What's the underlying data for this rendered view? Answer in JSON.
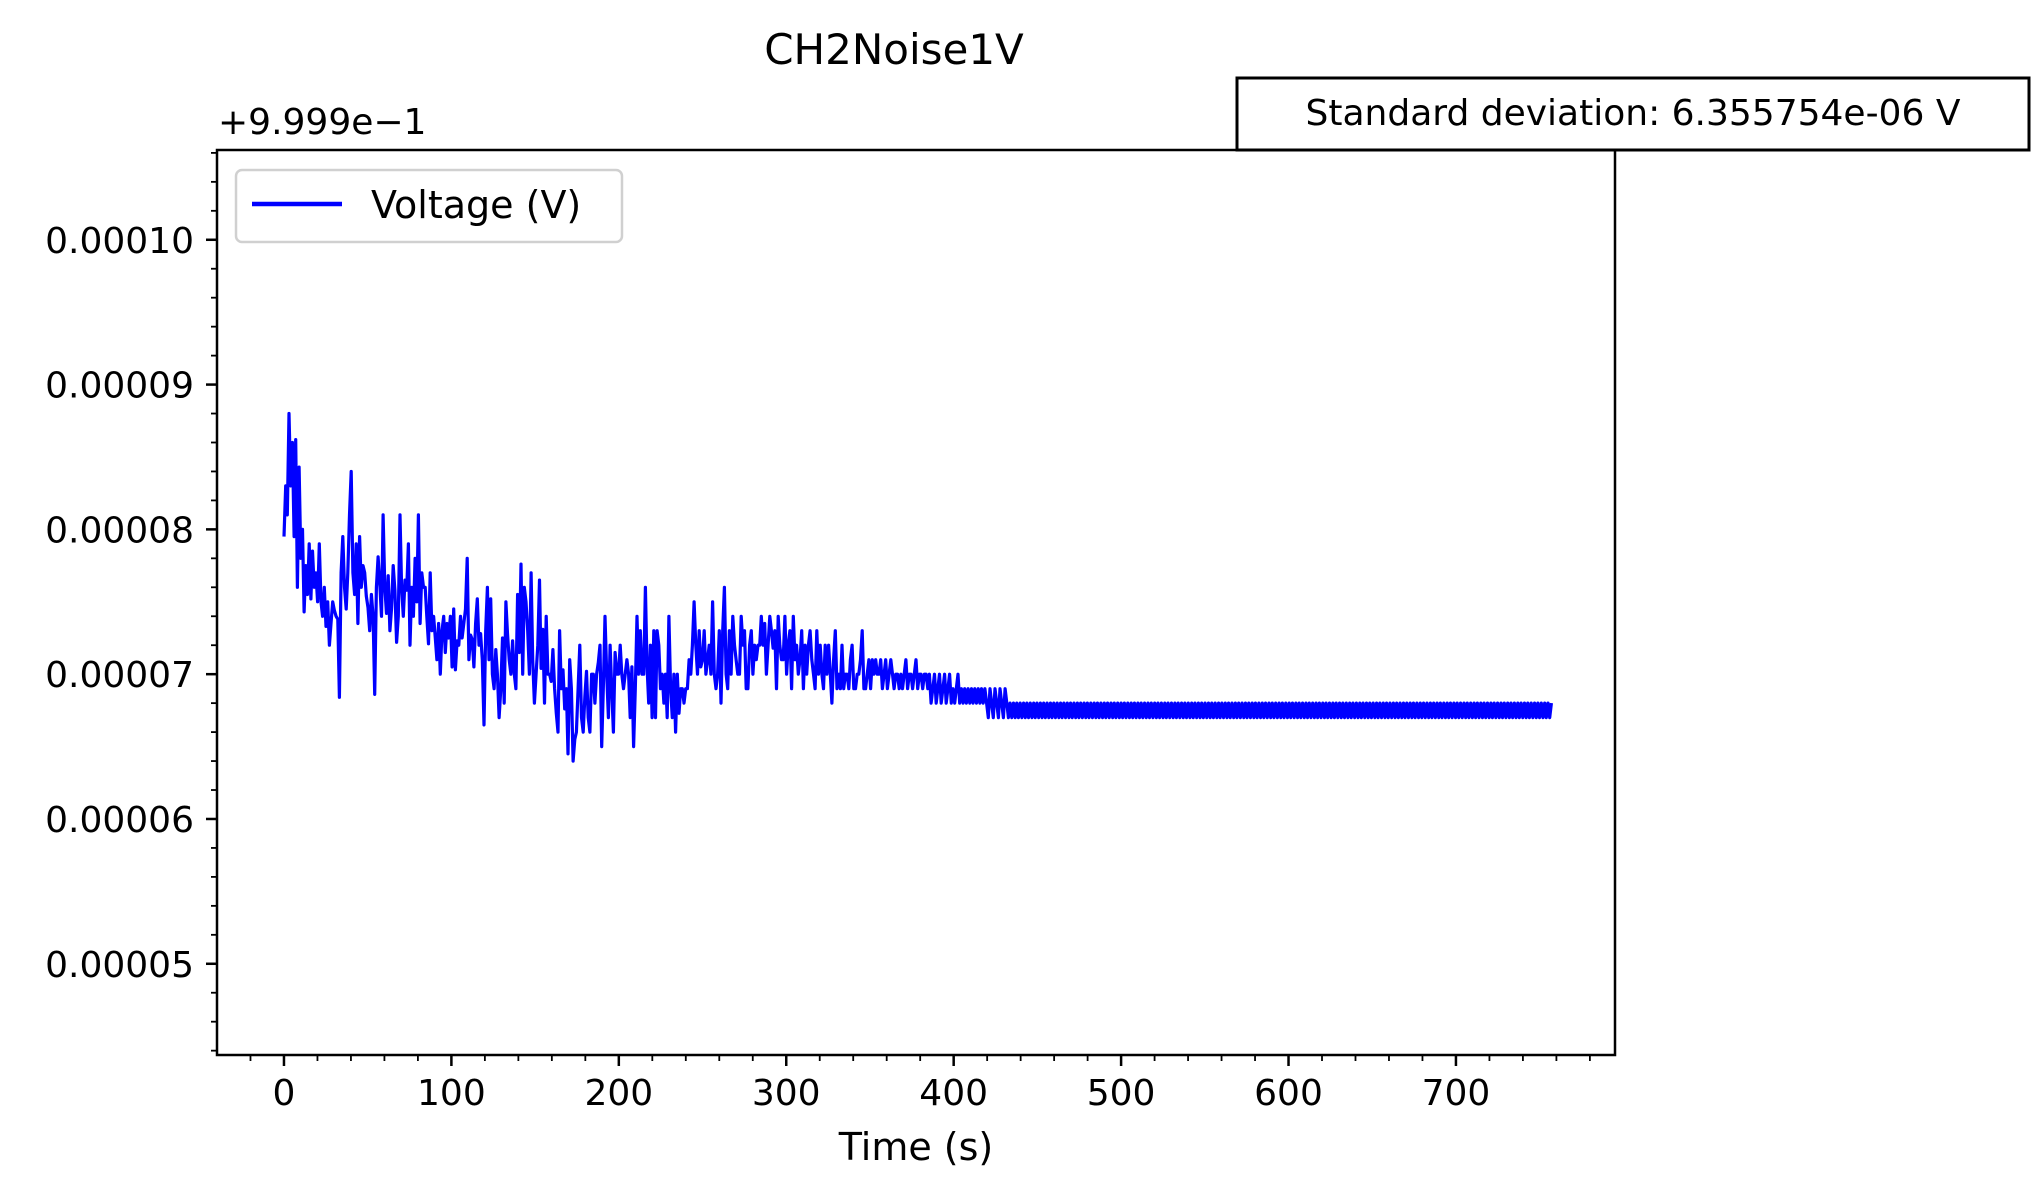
{
  "chart_data": {
    "type": "line",
    "title": "CH2Noise1V",
    "xlabel": "Time (s)",
    "ylabel": "",
    "y_offset_text": "+9.999e−1",
    "y_offset": 0.9999,
    "annotation": "Standard deviation: 6.355754e-06 V",
    "xlim": [
      -40,
      795
    ],
    "ylim": [
      4.37e-05,
      0.0001062
    ],
    "x_ticks": [
      0,
      100,
      200,
      300,
      400,
      500,
      600,
      700
    ],
    "x_tick_labels": [
      "0",
      "100",
      "200",
      "300",
      "400",
      "500",
      "600",
      "700"
    ],
    "y_ticks": [
      5e-05,
      6e-05,
      7e-05,
      8e-05,
      9e-05,
      0.0001
    ],
    "y_tick_labels": [
      "0.00005",
      "0.00006",
      "0.00007",
      "0.00008",
      "0.00009",
      "0.00010"
    ],
    "legend_position": "top-left",
    "grid": false,
    "series": [
      {
        "name": "Voltage (V)",
        "color": "#0000ff",
        "x_start": 0,
        "x_step": 1,
        "values": [
          7.95e-05,
          8.3e-05,
          8.1e-05,
          8.8e-05,
          8.3e-05,
          8.6e-05,
          7.95e-05,
          8.62e-05,
          7.6e-05,
          8.43e-05,
          7.8e-05,
          8e-05,
          7.43e-05,
          7.75e-05,
          7.55e-05,
          7.9e-05,
          7.52e-05,
          7.85e-05,
          7.6e-05,
          7.7e-05,
          7.5e-05,
          7.9e-05,
          7.5e-05,
          7.4e-05,
          7.6e-05,
          7.33e-05,
          7.5e-05,
          7.2e-05,
          7.35e-05,
          7.5e-05,
          7.44e-05,
          7.4e-05,
          7.38e-05,
          6.84e-05,
          7.7e-05,
          7.95e-05,
          7.6e-05,
          7.45e-05,
          7.7e-05,
          8.1e-05,
          8.4e-05,
          7.7e-05,
          7.55e-05,
          7.9e-05,
          7.35e-05,
          7.95e-05,
          7.6e-05,
          7.75e-05,
          7.7e-05,
          7.54e-05,
          7.46e-05,
          7.3e-05,
          7.55e-05,
          7.4e-05,
          6.86e-05,
          7.6e-05,
          7.81e-05,
          7.62e-05,
          7.4e-05,
          8.1e-05,
          7.6e-05,
          7.42e-05,
          7.68e-05,
          7.3e-05,
          7.45e-05,
          7.75e-05,
          7.58e-05,
          7.22e-05,
          7.4e-05,
          8.1e-05,
          7.6e-05,
          7.4e-05,
          7.65e-05,
          7.58e-05,
          7.9e-05,
          7.2e-05,
          7.6e-05,
          7.4e-05,
          7.8e-05,
          7.5e-05,
          8.1e-05,
          7.35e-05,
          7.7e-05,
          7.6e-05,
          7.6e-05,
          7.4e-05,
          7.21e-05,
          7.7e-05,
          7.3e-05,
          7.4e-05,
          7.25e-05,
          7.1e-05,
          7.35e-05,
          7e-05,
          7.3e-05,
          7.4e-05,
          7.15e-05,
          7.35e-05,
          7.25e-05,
          7.4e-05,
          7.05e-05,
          7.45e-05,
          7.03e-05,
          7.23e-05,
          7.2e-05,
          7.4e-05,
          7.25e-05,
          7.35e-05,
          7.45e-05,
          7.8e-05,
          7.1e-05,
          7.27e-05,
          7.24e-05,
          7.05e-05,
          7.35e-05,
          7.52e-05,
          7.2e-05,
          7.28e-05,
          7.1e-05,
          6.65e-05,
          7.3e-05,
          7.6e-05,
          7.1e-05,
          7.52e-05,
          7e-05,
          6.9e-05,
          7.17e-05,
          7e-05,
          6.7e-05,
          6.9e-05,
          7.25e-05,
          6.8e-05,
          7.5e-05,
          7.28e-05,
          7.1e-05,
          7e-05,
          7.23e-05,
          7e-05,
          6.9e-05,
          7.55e-05,
          7.15e-05,
          7.76e-05,
          7e-05,
          7.6e-05,
          7.5e-05,
          7.3e-05,
          7e-05,
          7.7e-05,
          7.1e-05,
          6.8e-05,
          7e-05,
          7.2e-05,
          7.65e-05,
          7.04e-05,
          7.31e-05,
          6.8e-05,
          7.4e-05,
          7e-05,
          7e-05,
          6.95e-05,
          7.17e-05,
          6.9e-05,
          6.73e-05,
          6.6e-05,
          7.3e-05,
          6.9e-05,
          7.03e-05,
          6.76e-05,
          6.9e-05,
          6.45e-05,
          7.1e-05,
          6.9e-05,
          6.4e-05,
          6.55e-05,
          6.6e-05,
          6.9e-05,
          7.2e-05,
          6.7e-05,
          6.6e-05,
          6.85e-05,
          7.02e-05,
          6.7e-05,
          6.6e-05,
          7e-05,
          7e-05,
          6.8e-05,
          7e-05,
          7.08e-05,
          7.2e-05,
          6.5e-05,
          6.9e-05,
          7.4e-05,
          7e-05,
          6.7e-05,
          7.2e-05,
          6.9e-05,
          6.6e-05,
          7.15e-05,
          7e-05,
          7e-05,
          7.2e-05,
          7e-05,
          6.9e-05,
          7e-05,
          7.1e-05,
          7e-05,
          6.7e-05,
          7.05e-05,
          6.5e-05,
          6.9e-05,
          7.4e-05,
          7e-05,
          7.3e-05,
          7e-05,
          7e-05,
          7.6e-05,
          7.06e-05,
          6.8e-05,
          7.2e-05,
          6.7e-05,
          7.3e-05,
          6.7e-05,
          7.3e-05,
          7.2e-05,
          6.9e-05,
          7e-05,
          6.8e-05,
          7e-05,
          6.7e-05,
          7.4e-05,
          6.9e-05,
          6.7e-05,
          7e-05,
          6.6e-05,
          7e-05,
          6.73e-05,
          6.9e-05,
          6.9e-05,
          6.8e-05,
          6.9e-05,
          6.9e-05,
          7.1e-05,
          7e-05,
          7.2e-05,
          7.5e-05,
          7.2e-05,
          7e-05,
          7.3e-05,
          7.05e-05,
          7.1e-05,
          7.3e-05,
          7e-05,
          7.1e-05,
          7.2e-05,
          7e-05,
          7.5e-05,
          7e-05,
          6.9e-05,
          7e-05,
          7.3e-05,
          6.8e-05,
          7.3e-05,
          7.6e-05,
          7e-05,
          6.9e-05,
          7.3e-05,
          7e-05,
          7.4e-05,
          7.2e-05,
          7.1e-05,
          7e-05,
          7e-05,
          7.4e-05,
          7.2e-05,
          7.3e-05,
          6.9e-05,
          6.9e-05,
          7.2e-05,
          7.3e-05,
          7e-05,
          7.2e-05,
          7.1e-05,
          7.2e-05,
          7.2e-05,
          7.4e-05,
          7.2e-05,
          7.35e-05,
          7e-05,
          7.2e-05,
          7.4e-05,
          7.3e-05,
          7.18e-05,
          7.3e-05,
          6.9e-05,
          7.4e-05,
          7.2e-05,
          7.1e-05,
          7.1e-05,
          7.4e-05,
          7e-05,
          7.2e-05,
          7.3e-05,
          6.9e-05,
          7.4e-05,
          7.1e-05,
          7.2e-05,
          7e-05,
          7.1e-05,
          7.3e-05,
          6.9e-05,
          7.2e-05,
          7e-05,
          7.2e-05,
          7.3e-05,
          7.1e-05,
          7e-05,
          6.9e-05,
          7.3e-05,
          7e-05,
          7.2e-05,
          7e-05,
          6.9e-05,
          7.2e-05,
          7e-05,
          7.2e-05,
          7e-05,
          6.8e-05,
          7.1e-05,
          7.3e-05,
          6.9e-05,
          7e-05,
          6.9e-05,
          7.2e-05,
          6.9e-05,
          7e-05,
          7e-05,
          6.9e-05,
          7.1e-05,
          7.2e-05,
          6.9e-05,
          6.9e-05,
          7e-05,
          7e-05,
          7.1e-05,
          7.3e-05,
          6.9e-05,
          6.9e-05,
          7e-05,
          7.1e-05,
          6.9e-05,
          7.1e-05,
          7e-05,
          7.1e-05,
          7e-05,
          7e-05,
          7.1e-05,
          6.9e-05,
          7e-05,
          7.1e-05,
          6.9e-05,
          7e-05,
          7.1e-05,
          7e-05,
          6.9e-05,
          7e-05,
          7e-05,
          6.9e-05,
          7e-05,
          6.9e-05,
          7e-05,
          7.1e-05,
          6.9e-05,
          7e-05,
          7e-05,
          6.9e-05,
          7e-05,
          7.1e-05,
          6.9e-05,
          7e-05,
          7e-05,
          6.9e-05,
          7e-05,
          7e-05,
          6.9e-05,
          7e-05,
          6.8e-05,
          6.9e-05,
          7e-05,
          6.8e-05,
          6.9e-05,
          7e-05,
          6.8e-05,
          6.9e-05,
          7e-05,
          6.8e-05,
          6.9e-05,
          7e-05,
          6.8e-05,
          6.9e-05,
          6.8e-05,
          6.9e-05,
          7e-05,
          6.8e-05,
          6.9e-05,
          6.8e-05,
          6.9e-05,
          6.8e-05,
          6.9e-05,
          6.8e-05,
          6.9e-05,
          6.8e-05,
          6.9e-05,
          6.8e-05,
          6.9e-05,
          6.8e-05,
          6.9e-05,
          6.8e-05,
          6.9e-05,
          6.8e-05,
          6.7e-05,
          6.9e-05,
          6.8e-05,
          6.7e-05,
          6.9e-05,
          6.8e-05,
          6.7e-05,
          6.9e-05,
          6.8e-05,
          6.7e-05,
          6.9e-05,
          6.8e-05,
          6.7e-05,
          6.8e-05,
          6.7e-05,
          6.8e-05,
          6.7e-05,
          6.8e-05,
          6.7e-05,
          6.8e-05,
          6.7e-05,
          6.8e-05,
          6.7e-05,
          6.8e-05,
          6.7e-05,
          6.8e-05,
          6.7e-05,
          6.8e-05,
          6.7e-05,
          6.8e-05,
          6.7e-05,
          6.8e-05,
          6.7e-05,
          6.8e-05,
          6.7e-05,
          6.8e-05,
          6.7e-05,
          6.8e-05,
          6.7e-05,
          6.8e-05,
          6.7e-05,
          6.8e-05,
          6.7e-05,
          6.8e-05,
          6.7e-05,
          6.8e-05,
          6.7e-05,
          6.8e-05,
          6.7e-05,
          6.8e-05,
          6.7e-05,
          6.8e-05,
          6.7e-05,
          6.8e-05,
          6.7e-05,
          6.8e-05,
          6.7e-05,
          6.8e-05,
          6.7e-05,
          6.8e-05,
          6.7e-05,
          6.8e-05,
          6.7e-05,
          6.8e-05,
          6.7e-05,
          6.8e-05,
          6.7e-05,
          6.8e-05,
          6.7e-05,
          6.8e-05,
          6.7e-05,
          6.8e-05,
          6.7e-05,
          6.8e-05,
          6.7e-05,
          6.8e-05,
          6.7e-05,
          6.8e-05,
          6.7e-05,
          6.8e-05,
          6.7e-05,
          6.8e-05,
          6.7e-05,
          6.8e-05,
          6.7e-05,
          6.8e-05,
          6.7e-05,
          6.8e-05,
          6.7e-05,
          6.8e-05,
          6.7e-05,
          6.8e-05,
          6.7e-05,
          6.8e-05,
          6.7e-05,
          6.8e-05,
          6.7e-05,
          6.8e-05,
          6.7e-05,
          6.8e-05,
          6.7e-05,
          6.8e-05,
          6.7e-05,
          6.8e-05,
          6.7e-05,
          6.8e-05,
          6.7e-05,
          6.8e-05,
          6.7e-05,
          6.8e-05,
          6.7e-05,
          6.8e-05,
          6.7e-05,
          6.8e-05,
          6.7e-05,
          6.8e-05,
          6.7e-05,
          6.8e-05,
          6.7e-05,
          6.8e-05,
          6.7e-05,
          6.8e-05,
          6.7e-05,
          6.8e-05,
          6.7e-05,
          6.8e-05,
          6.7e-05,
          6.8e-05,
          6.7e-05,
          6.8e-05,
          6.7e-05,
          6.8e-05,
          6.7e-05,
          6.8e-05,
          6.7e-05,
          6.8e-05,
          6.7e-05,
          6.8e-05,
          6.7e-05,
          6.8e-05,
          6.7e-05,
          6.8e-05,
          6.7e-05,
          6.8e-05,
          6.7e-05,
          6.8e-05,
          6.7e-05,
          6.8e-05,
          6.7e-05,
          6.8e-05,
          6.7e-05,
          6.8e-05,
          6.7e-05,
          6.8e-05,
          6.7e-05,
          6.8e-05,
          6.7e-05,
          6.8e-05,
          6.7e-05,
          6.8e-05,
          6.7e-05,
          6.8e-05,
          6.7e-05,
          6.8e-05,
          6.7e-05,
          6.8e-05,
          6.7e-05,
          6.8e-05,
          6.7e-05,
          6.8e-05,
          6.7e-05,
          6.8e-05,
          6.7e-05,
          6.8e-05,
          6.7e-05,
          6.8e-05,
          6.7e-05,
          6.8e-05,
          6.7e-05,
          6.8e-05,
          6.7e-05,
          6.8e-05,
          6.7e-05,
          6.8e-05,
          6.7e-05,
          6.8e-05,
          6.7e-05,
          6.8e-05,
          6.7e-05,
          6.8e-05,
          6.7e-05,
          6.8e-05,
          6.7e-05,
          6.8e-05,
          6.7e-05,
          6.8e-05,
          6.7e-05,
          6.8e-05,
          6.7e-05,
          6.8e-05,
          6.7e-05,
          6.8e-05,
          6.7e-05,
          6.8e-05,
          6.7e-05,
          6.8e-05,
          6.7e-05,
          6.8e-05,
          6.7e-05,
          6.8e-05,
          6.7e-05,
          6.8e-05,
          6.7e-05,
          6.8e-05,
          6.7e-05,
          6.8e-05,
          6.7e-05,
          6.8e-05,
          6.7e-05,
          6.8e-05,
          6.7e-05,
          6.8e-05,
          6.7e-05,
          6.8e-05,
          6.7e-05,
          6.8e-05,
          6.7e-05,
          6.8e-05,
          6.7e-05,
          6.8e-05,
          6.7e-05,
          6.8e-05,
          6.7e-05,
          6.8e-05,
          6.7e-05,
          6.8e-05,
          6.7e-05,
          6.8e-05,
          6.7e-05,
          6.8e-05,
          6.7e-05,
          6.8e-05,
          6.7e-05,
          6.8e-05,
          6.7e-05,
          6.8e-05,
          6.7e-05,
          6.8e-05,
          6.7e-05,
          6.8e-05,
          6.7e-05,
          6.8e-05,
          6.7e-05,
          6.8e-05,
          6.7e-05,
          6.8e-05,
          6.7e-05,
          6.8e-05,
          6.7e-05,
          6.8e-05,
          6.7e-05,
          6.8e-05,
          6.7e-05,
          6.8e-05,
          6.7e-05,
          6.8e-05,
          6.7e-05,
          6.8e-05,
          6.7e-05,
          6.8e-05,
          6.7e-05,
          6.8e-05,
          6.7e-05,
          6.8e-05,
          6.7e-05,
          6.8e-05,
          6.7e-05,
          6.8e-05,
          6.7e-05,
          6.8e-05,
          6.7e-05,
          6.8e-05,
          6.7e-05,
          6.8e-05,
          6.7e-05,
          6.8e-05,
          6.7e-05,
          6.8e-05,
          6.7e-05,
          6.8e-05,
          6.7e-05,
          6.8e-05,
          6.7e-05,
          6.8e-05,
          6.7e-05,
          6.8e-05,
          6.7e-05,
          6.8e-05,
          6.7e-05,
          6.8e-05,
          6.7e-05,
          6.8e-05,
          6.7e-05,
          6.8e-05,
          6.7e-05,
          6.8e-05,
          6.7e-05,
          6.8e-05,
          6.7e-05,
          6.8e-05,
          6.7e-05,
          6.8e-05,
          6.7e-05,
          6.8e-05,
          6.7e-05,
          6.8e-05,
          6.7e-05,
          6.8e-05,
          6.7e-05,
          6.8e-05,
          6.7e-05,
          6.8e-05,
          6.7e-05,
          6.8e-05,
          6.7e-05,
          6.8e-05,
          6.7e-05,
          6.8e-05,
          6.7e-05,
          6.8e-05,
          6.7e-05,
          6.8e-05,
          6.7e-05,
          6.8e-05,
          6.7e-05,
          6.8e-05
        ]
      }
    ]
  }
}
